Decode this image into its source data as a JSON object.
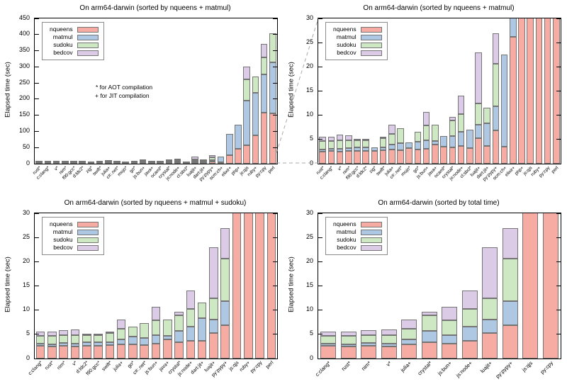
{
  "colors": {
    "nqueens": "#f6aca2",
    "matmul": "#aec7e3",
    "sudoku": "#cfe8c4",
    "bedcov": "#dccbe7",
    "bar_border": "#757575",
    "axis": "#000000",
    "dashed_line": "#aaaaaa"
  },
  "shared": {
    "ylabel": "Elapsed time (sec)",
    "legend": [
      "nqueens",
      "matmul",
      "sudoku",
      "bedcov"
    ],
    "annotation": [
      "* for AOT compilation",
      "+ for JIT compilation"
    ]
  },
  "chart_data": [
    {
      "id": "top-left",
      "type": "bar",
      "title": "On arm64-darwin (sorted by nqueens + matmul)",
      "ylabel": "Elapsed time (sec)",
      "ylim": [
        0,
        450
      ],
      "ytick_step": 50,
      "grid": false,
      "legend_position": "top-left",
      "show_annotation": true,
      "categories": [
        "rust*",
        "c:clang*",
        "v*",
        "nim*",
        "f90:gcc*",
        "d:ldc2*",
        "zig*",
        "swift*",
        "julia+",
        "c#:.net*",
        "mojo*",
        "go*",
        "js:bun+",
        "java+",
        "ocaml*",
        "crystal*",
        "js:node+",
        "cl:sbcl*",
        "luajit+",
        "dart:jit+",
        "py:pypy+",
        "scm:ch+",
        "elixir+",
        "php+",
        "js:qjs",
        "ruby+",
        "py:cpy",
        "perl"
      ],
      "series": [
        {
          "name": "nqueens",
          "values": [
            2.5,
            2.6,
            2.5,
            2.6,
            2.6,
            2.6,
            2.7,
            2.8,
            3.0,
            2.8,
            3.2,
            2.9,
            3.1,
            4.0,
            3.5,
            3.3,
            3.7,
            3.2,
            5.3,
            3.6,
            6.9,
            3.5,
            26.2,
            47,
            58,
            87,
            157,
            156
          ]
        },
        {
          "name": "matmul",
          "values": [
            0.5,
            0.5,
            0.6,
            0.6,
            0.7,
            0.7,
            0.7,
            0.5,
            0.9,
            1.4,
            1.2,
            1.7,
            1.8,
            0.7,
            2.2,
            2.4,
            2.9,
            3.9,
            2.7,
            4.8,
            4.9,
            19.1,
            67,
            73,
            137,
            133,
            119,
            159
          ]
        },
        {
          "name": "sudoku",
          "values": [
            1.7,
            1.6,
            1.8,
            1.6,
            1.6,
            1.5,
            0,
            1.9,
            2.2,
            3.1,
            0,
            2.0,
            3.0,
            3.3,
            0,
            3.2,
            3.7,
            0,
            4.5,
            3.2,
            8.8,
            0,
            0,
            0,
            67,
            50,
            54,
            88
          ]
        },
        {
          "name": "bedcov",
          "values": [
            0.9,
            0.8,
            1.1,
            1.0,
            0.2,
            0.1,
            0,
            0.1,
            2.0,
            0,
            0,
            0,
            2.8,
            0,
            0,
            0.8,
            3.8,
            0,
            10.5,
            0,
            6.4,
            0,
            0,
            0,
            38,
            0,
            42,
            0
          ]
        }
      ]
    },
    {
      "id": "top-right",
      "type": "bar",
      "title": "On arm64-darwin (sorted by nqueens + matmul)",
      "ylabel": "Elapsed time (sec)",
      "ylim": [
        0,
        30
      ],
      "ytick_step": 5,
      "grid": false,
      "legend_position": "top-left",
      "show_annotation": false,
      "categories": [
        "rust*",
        "c:clang*",
        "v*",
        "nim*",
        "f90:gcc*",
        "d:ldc2*",
        "zig*",
        "swift*",
        "julia+",
        "c#:.net*",
        "mojo*",
        "go*",
        "js:bun+",
        "java+",
        "ocaml*",
        "crystal*",
        "js:node+",
        "cl:sbcl*",
        "luajit+",
        "dart:jit+",
        "py:pypy+",
        "scm:ch+",
        "elixir+",
        "php+",
        "js:qjs",
        "ruby+",
        "py:cpy",
        "perl"
      ],
      "series": [
        {
          "name": "nqueens",
          "values": [
            2.5,
            2.6,
            2.5,
            2.6,
            2.6,
            2.6,
            2.7,
            2.8,
            3.0,
            2.8,
            3.2,
            2.9,
            3.1,
            4.0,
            3.5,
            3.3,
            3.7,
            3.2,
            5.3,
            3.6,
            6.9,
            3.5,
            26.2,
            47,
            58,
            87,
            157,
            156
          ]
        },
        {
          "name": "matmul",
          "values": [
            0.5,
            0.5,
            0.6,
            0.6,
            0.7,
            0.7,
            0.7,
            0.5,
            0.9,
            1.4,
            1.2,
            1.7,
            1.8,
            0.7,
            2.2,
            2.4,
            2.9,
            3.9,
            2.7,
            4.8,
            4.9,
            19.1,
            67,
            73,
            137,
            133,
            119,
            159
          ]
        },
        {
          "name": "sudoku",
          "values": [
            1.7,
            1.6,
            1.8,
            1.6,
            1.6,
            1.5,
            0,
            1.9,
            2.2,
            3.1,
            0,
            2.0,
            3.0,
            3.3,
            0,
            3.2,
            3.7,
            0,
            4.5,
            3.2,
            8.8,
            0,
            0,
            0,
            67,
            50,
            54,
            88
          ]
        },
        {
          "name": "bedcov",
          "values": [
            0.9,
            0.8,
            1.1,
            1.0,
            0.2,
            0.1,
            0,
            0.1,
            2.0,
            0,
            0,
            0,
            2.8,
            0,
            0,
            0.8,
            3.8,
            0,
            10.5,
            0,
            6.4,
            0,
            0,
            0,
            38,
            0,
            42,
            0
          ]
        }
      ]
    },
    {
      "id": "bottom-left",
      "type": "bar",
      "title": "On arm64-darwin (sorted by nqueens + matmul + sudoku)",
      "ylabel": "Elapsed time (sec)",
      "ylim": [
        0,
        30
      ],
      "ytick_step": 5,
      "grid": false,
      "legend_position": "top-left",
      "show_annotation": false,
      "categories": [
        "c:clang*",
        "rust*",
        "nim*",
        "v*",
        "d:ldc2*",
        "f90:gcc*",
        "swift*",
        "julia+",
        "go*",
        "c#:.net*",
        "js:bun+",
        "java+",
        "crystal*",
        "js:node+",
        "dart:jit+",
        "luajit+",
        "py:pypy+",
        "js:qjs",
        "ruby+",
        "py:cpy",
        "perl"
      ],
      "series": [
        {
          "name": "nqueens",
          "values": [
            2.6,
            2.5,
            2.6,
            2.5,
            2.6,
            2.6,
            2.8,
            3.0,
            2.9,
            2.8,
            3.1,
            4.0,
            3.3,
            3.7,
            3.6,
            5.3,
            6.9,
            58,
            87,
            157,
            156
          ]
        },
        {
          "name": "matmul",
          "values": [
            0.5,
            0.5,
            0.6,
            0.6,
            0.7,
            0.7,
            0.5,
            0.9,
            1.7,
            1.4,
            1.8,
            0.7,
            2.4,
            2.9,
            4.8,
            2.7,
            4.9,
            137,
            133,
            119,
            159
          ]
        },
        {
          "name": "sudoku",
          "values": [
            1.6,
            1.7,
            1.6,
            1.8,
            1.5,
            1.6,
            1.9,
            2.2,
            2.0,
            3.1,
            3.0,
            3.3,
            3.2,
            3.7,
            3.2,
            4.5,
            8.8,
            67,
            50,
            54,
            88
          ]
        },
        {
          "name": "bedcov",
          "values": [
            0.8,
            0.9,
            1.0,
            1.1,
            0.1,
            0.2,
            0.1,
            2.0,
            0,
            0,
            2.8,
            0,
            0.8,
            3.8,
            0,
            10.5,
            6.4,
            38,
            0,
            42,
            0
          ]
        }
      ]
    },
    {
      "id": "bottom-right",
      "type": "bar",
      "title": "On arm64-darwin (sorted by total time)",
      "ylabel": "Elapsed time (sec)",
      "ylim": [
        0,
        30
      ],
      "ytick_step": 5,
      "grid": false,
      "legend_position": "top-left",
      "show_annotation": false,
      "categories": [
        "c:clang*",
        "rust*",
        "nim*",
        "v*",
        "julia+",
        "crystal*",
        "js:bun+",
        "js:node+",
        "luajit+",
        "py:pypy+",
        "js:qjs",
        "py:cpy"
      ],
      "series": [
        {
          "name": "nqueens",
          "values": [
            2.6,
            2.5,
            2.6,
            2.5,
            3.0,
            3.3,
            3.1,
            3.7,
            5.3,
            6.9,
            58,
            157
          ]
        },
        {
          "name": "matmul",
          "values": [
            0.5,
            0.5,
            0.6,
            0.6,
            0.9,
            2.4,
            1.8,
            2.9,
            2.7,
            4.9,
            137,
            119
          ]
        },
        {
          "name": "sudoku",
          "values": [
            1.6,
            1.7,
            1.6,
            1.8,
            2.2,
            3.2,
            3.0,
            3.7,
            4.5,
            8.8,
            67,
            54
          ]
        },
        {
          "name": "bedcov",
          "values": [
            0.8,
            0.9,
            1.0,
            1.1,
            2.0,
            0.8,
            2.8,
            3.8,
            10.5,
            6.4,
            38,
            42
          ]
        }
      ]
    }
  ]
}
